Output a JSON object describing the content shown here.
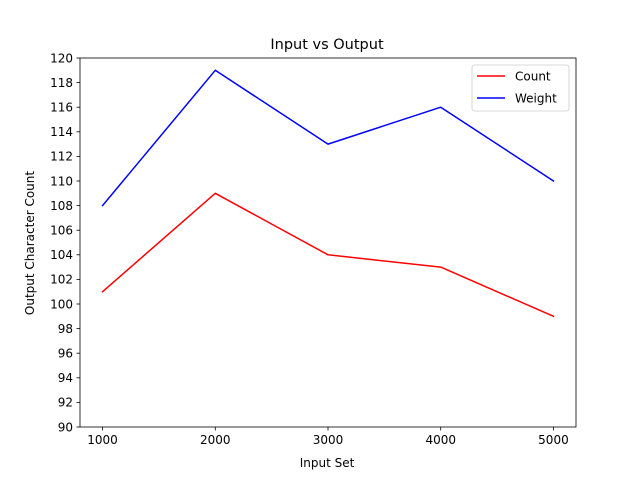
{
  "chart_data": {
    "type": "line",
    "title": "Input vs Output",
    "xlabel": "Input Set",
    "ylabel": "Output Character Count",
    "x": [
      1000,
      2000,
      3000,
      4000,
      5000
    ],
    "xticks": [
      1000,
      2000,
      3000,
      4000,
      5000
    ],
    "xlim": [
      800,
      5200
    ],
    "ylim": [
      90,
      120
    ],
    "yticks": [
      90,
      92,
      94,
      96,
      98,
      100,
      102,
      104,
      106,
      108,
      110,
      112,
      114,
      116,
      118,
      120
    ],
    "grid": false,
    "legend_position": "top-right",
    "series": [
      {
        "name": "Count",
        "color": "#ff0000",
        "values": [
          101,
          109,
          104,
          103,
          99
        ]
      },
      {
        "name": "Weight",
        "color": "#0000ff",
        "values": [
          108,
          119,
          113,
          116,
          110
        ]
      }
    ]
  }
}
